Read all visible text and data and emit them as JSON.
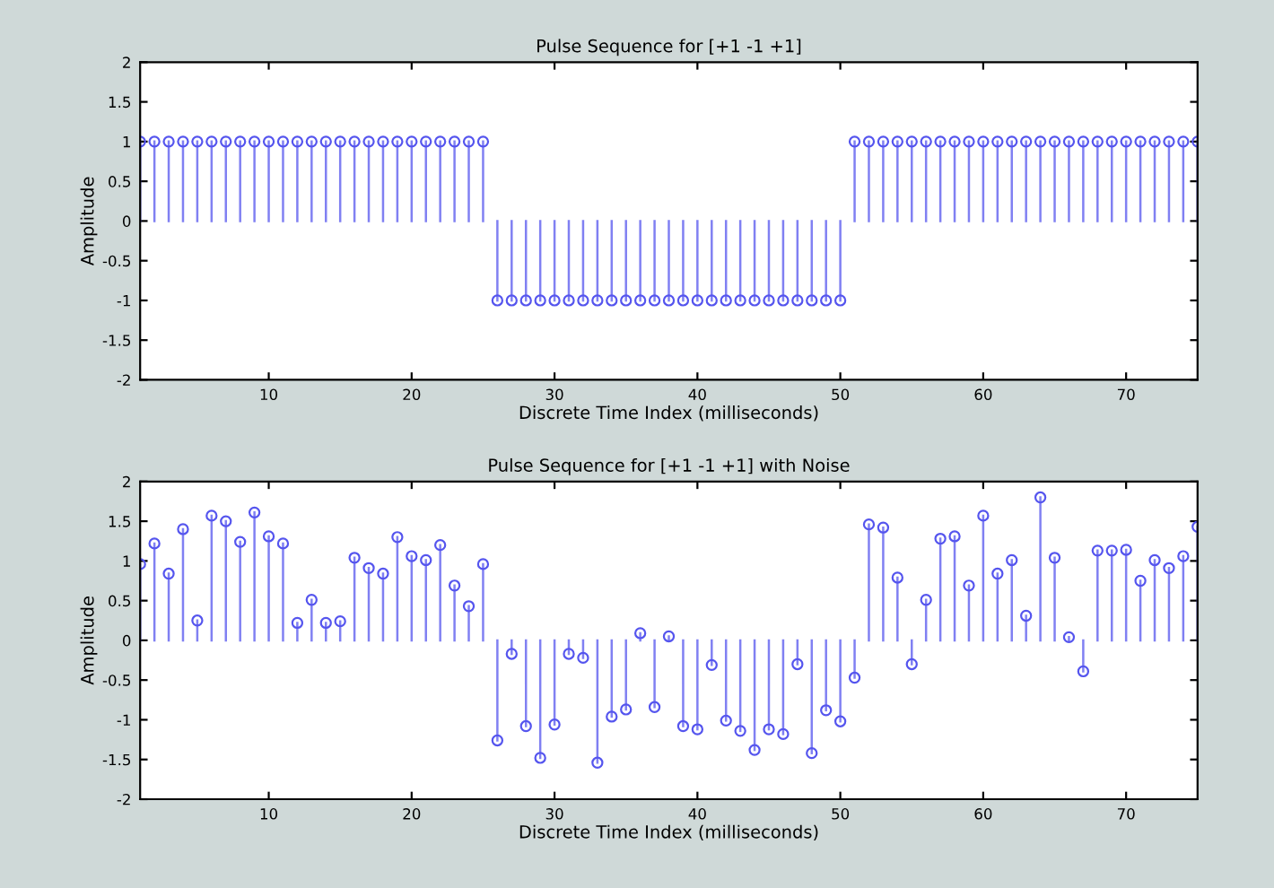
{
  "chart_data": [
    {
      "type": "lollipop",
      "title": "Pulse Sequence for [+1 -1 +1]",
      "xlabel": "Discrete Time Index (milliseconds)",
      "ylabel": "Amplitude",
      "x": [
        1,
        2,
        3,
        4,
        5,
        6,
        7,
        8,
        9,
        10,
        11,
        12,
        13,
        14,
        15,
        16,
        17,
        18,
        19,
        20,
        21,
        22,
        23,
        24,
        25,
        26,
        27,
        28,
        29,
        30,
        31,
        32,
        33,
        34,
        35,
        36,
        37,
        38,
        39,
        40,
        41,
        42,
        43,
        44,
        45,
        46,
        47,
        48,
        49,
        50,
        51,
        52,
        53,
        54,
        55,
        56,
        57,
        58,
        59,
        60,
        61,
        62,
        63,
        64,
        65,
        66,
        67,
        68,
        69,
        70,
        71,
        72,
        73,
        74,
        75
      ],
      "series": [
        {
          "color": "#5555ee",
          "values": [
            1,
            1,
            1,
            1,
            1,
            1,
            1,
            1,
            1,
            1,
            1,
            1,
            1,
            1,
            1,
            1,
            1,
            1,
            1,
            1,
            1,
            1,
            1,
            1,
            1,
            -1,
            -1,
            -1,
            -1,
            -1,
            -1,
            -1,
            -1,
            -1,
            -1,
            -1,
            -1,
            -1,
            -1,
            -1,
            -1,
            -1,
            -1,
            -1,
            -1,
            -1,
            -1,
            -1,
            -1,
            -1,
            1,
            1,
            1,
            1,
            1,
            1,
            1,
            1,
            1,
            1,
            1,
            1,
            1,
            1,
            1,
            1,
            1,
            1,
            1,
            1,
            1,
            1,
            1,
            1,
            1
          ]
        }
      ],
      "xlim": [
        1,
        75
      ],
      "xticks": [
        10,
        20,
        30,
        40,
        50,
        60,
        70
      ],
      "ylim": [
        -2,
        2
      ],
      "yticks": [
        -2,
        -1.5,
        -1,
        -0.5,
        0,
        0.5,
        1,
        1.5,
        2
      ],
      "marker": "circle",
      "grid": false,
      "legend": false
    },
    {
      "type": "lollipop",
      "title": "Pulse Sequence for [+1 -1 +1] with Noise",
      "xlabel": "Discrete Time Index (milliseconds)",
      "ylabel": "Amplitude",
      "x": [
        1,
        2,
        3,
        4,
        5,
        6,
        7,
        8,
        9,
        10,
        11,
        12,
        13,
        14,
        15,
        16,
        17,
        18,
        19,
        20,
        21,
        22,
        23,
        24,
        25,
        26,
        27,
        28,
        29,
        30,
        31,
        32,
        33,
        34,
        35,
        36,
        37,
        38,
        39,
        40,
        41,
        42,
        43,
        44,
        45,
        46,
        47,
        48,
        49,
        50,
        51,
        52,
        53,
        54,
        55,
        56,
        57,
        58,
        59,
        60,
        61,
        62,
        63,
        64,
        65,
        66,
        67,
        68,
        69,
        70,
        71,
        72,
        73,
        74,
        75
      ],
      "series": [
        {
          "color": "#5555ee",
          "values": [
            0.96,
            1.22,
            0.84,
            1.4,
            0.25,
            1.57,
            1.5,
            1.24,
            1.61,
            1.31,
            1.22,
            0.22,
            0.51,
            0.22,
            0.24,
            1.04,
            0.91,
            0.84,
            1.3,
            1.06,
            1.01,
            1.2,
            0.69,
            0.43,
            0.96,
            -1.26,
            -0.17,
            -1.08,
            -1.48,
            -1.06,
            -0.17,
            -0.22,
            -1.54,
            -0.96,
            -0.87,
            0.09,
            -0.84,
            0.05,
            -1.08,
            -1.12,
            -0.31,
            -1.01,
            -1.14,
            -1.38,
            -1.12,
            -1.18,
            -0.3,
            -1.42,
            -0.88,
            -1.02,
            -0.47,
            1.46,
            1.42,
            0.79,
            -0.3,
            0.51,
            1.28,
            1.31,
            0.69,
            1.57,
            0.84,
            1.01,
            0.31,
            1.8,
            1.04,
            0.04,
            -0.39,
            1.13,
            1.13,
            1.14,
            0.75,
            1.01,
            0.91,
            1.06,
            1.43
          ]
        }
      ],
      "xlim": [
        1,
        75
      ],
      "xticks": [
        10,
        20,
        30,
        40,
        50,
        60,
        70
      ],
      "ylim": [
        -2,
        2
      ],
      "yticks": [
        -2,
        -1.5,
        -1,
        -0.5,
        0,
        0.5,
        1,
        1.5,
        2
      ],
      "marker": "circle",
      "grid": false,
      "legend": false
    }
  ]
}
